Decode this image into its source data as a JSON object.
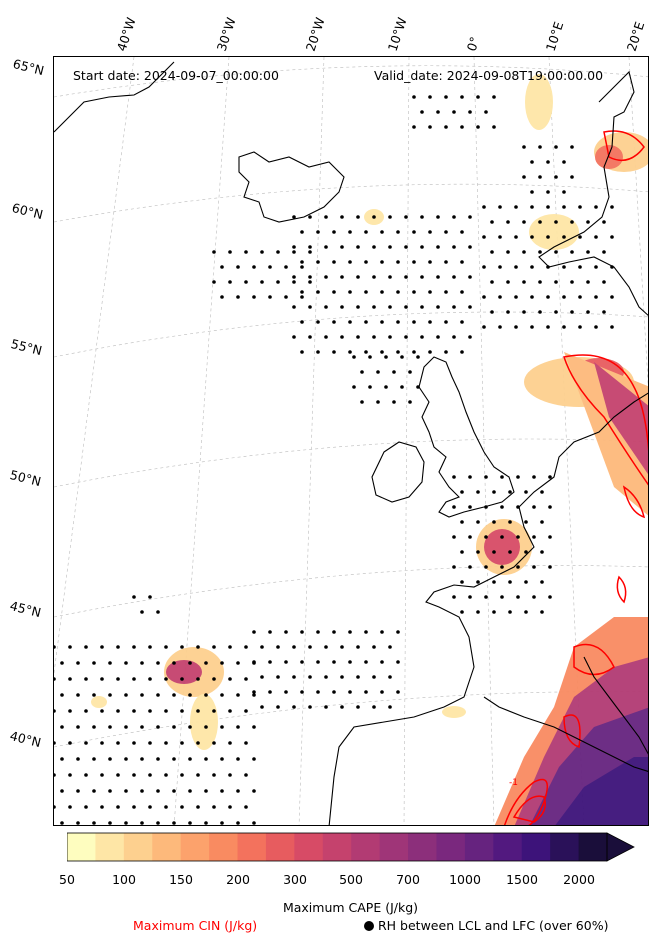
{
  "header": {
    "start_date": "Start date: 2024-09-07_00:00:00",
    "valid_date": "Valid_date: 2024-09-08T19:00:00.00"
  },
  "lat_labels": [
    "65°N",
    "60°N",
    "55°N",
    "50°N",
    "45°N",
    "40°N"
  ],
  "lon_labels": [
    "40°W",
    "30°W",
    "20°W",
    "10°W",
    "0°",
    "10°E",
    "20°E"
  ],
  "colorbar": {
    "title": "Maximum CAPE (J/kg)",
    "ticks": [
      "50",
      "100",
      "150",
      "200",
      "300",
      "500",
      "700",
      "1000",
      "1500",
      "2000"
    ],
    "colors": [
      "#fefdbf",
      "#fee6a6",
      "#fdd08f",
      "#fdb97b",
      "#fca26c",
      "#f98b61",
      "#f3725d",
      "#e75c5f",
      "#d74b66",
      "#c5426d",
      "#b23b73",
      "#9f3578",
      "#8c2f7b",
      "#7a287e",
      "#66237f",
      "#52197f",
      "#3d137a",
      "#2a1159",
      "#1a0e3a"
    ],
    "extend": "max"
  },
  "legend": {
    "cin_label": "Maximum CIN (J/kg)",
    "rh_label": "RH between LCL and LFC (over 60%)",
    "cin_color": "#ff0000",
    "rh_marker": "black-dot"
  },
  "map_annotations": {
    "cin_contour_label": "-1"
  }
}
